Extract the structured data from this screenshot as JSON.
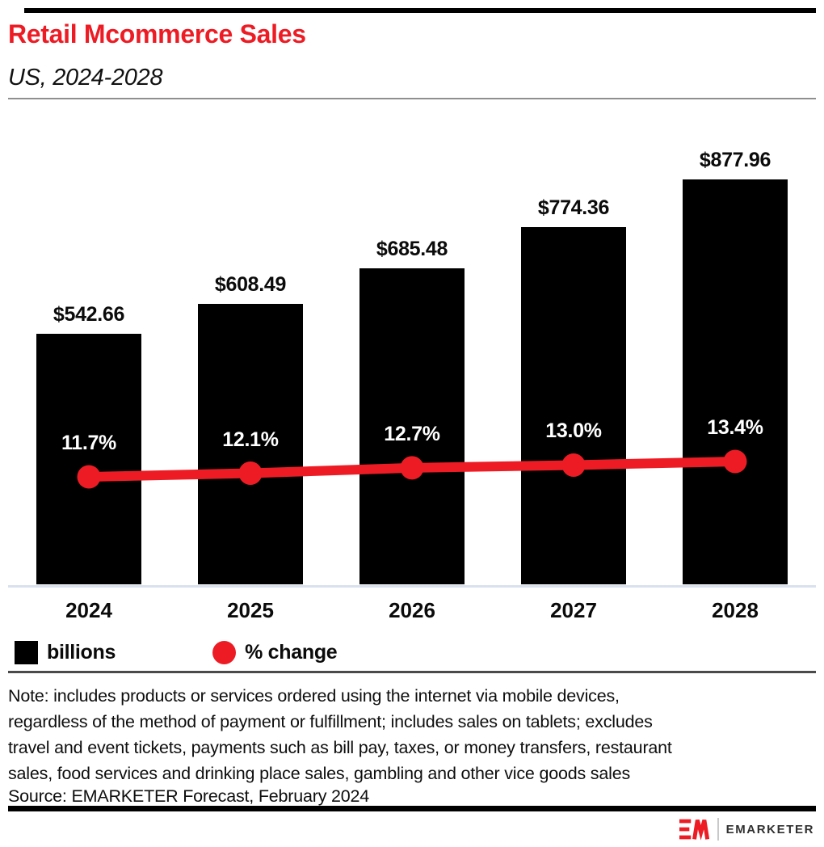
{
  "header": {
    "title": "Retail Mcommerce Sales",
    "subtitle": "US, 2024-2028"
  },
  "chart_data": {
    "type": "bar",
    "combo": "bar+line",
    "categories": [
      "2024",
      "2025",
      "2026",
      "2027",
      "2028"
    ],
    "series": [
      {
        "name": "billions",
        "type": "bar",
        "color": "#000000",
        "values": [
          542.66,
          608.49,
          685.48,
          774.36,
          877.96
        ],
        "labels": [
          "$542.66",
          "$608.49",
          "$685.48",
          "$774.36",
          "$877.96"
        ]
      },
      {
        "name": "% change",
        "type": "line",
        "color": "#ED1C24",
        "values": [
          11.7,
          12.1,
          12.7,
          13.0,
          13.4
        ],
        "labels": [
          "11.7%",
          "12.1%",
          "12.7%",
          "13.0%",
          "13.4%"
        ]
      }
    ],
    "title": "Retail Mcommerce Sales",
    "subtitle": "US, 2024-2028",
    "xlabel": "",
    "ylabel": "",
    "ylim": [
      0,
      900
    ],
    "grid": false,
    "legend_position": "bottom-left"
  },
  "legend": [
    {
      "label": "billions",
      "swatch": "square",
      "color": "#000000"
    },
    {
      "label": "% change",
      "swatch": "circle",
      "color": "#ED1C24"
    }
  ],
  "note": {
    "lines": [
      "Note: includes products or services ordered using the internet via mobile devices,",
      "regardless of the method of payment or fulfillment; includes sales on tablets; excludes",
      "travel and event tickets, payments such as bill pay, taxes, or money transfers, restaurant",
      "sales, food services and drinking place sales, gambling and other vice goods sales"
    ]
  },
  "source": "Source: EMARKETER Forecast, February 2024",
  "footer_logo": {
    "mark": "EM",
    "text": "EMARKETER"
  },
  "colors": {
    "accent": "#ED1C24",
    "bar": "#000000",
    "axis_line": "#D9E1EE",
    "rule_light": "#8F8F8F",
    "rule_dark": "#4A4A4A"
  }
}
